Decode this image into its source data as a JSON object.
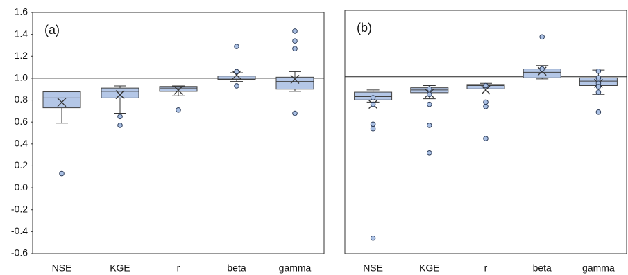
{
  "chart_data": [
    {
      "type": "box",
      "annotation": "(a)",
      "color": "#b4c7e7",
      "categories": [
        "NSE",
        "KGE",
        "r",
        "beta",
        "gamma"
      ],
      "ylim": [
        -0.6,
        1.6
      ],
      "yticks": [
        1.6,
        1.4,
        1.2,
        {
          "value": 1,
          "label": "1.0"
        },
        0.8,
        0.6,
        0.4,
        0.2,
        {
          "value": 0,
          "label": "0.0"
        },
        -0.2,
        -0.4,
        -0.6
      ],
      "hline": 1,
      "boxes": [
        {
          "low": 0.59,
          "q1": 0.73,
          "median": 0.82,
          "q3": 0.876,
          "high": 0.876,
          "mean": 0.78,
          "outliers": [
            0.13
          ]
        },
        {
          "low": 0.68,
          "q1": 0.82,
          "median": 0.88,
          "q3": 0.91,
          "high": 0.93,
          "mean": 0.85,
          "outliers": [
            0.65,
            0.57
          ]
        },
        {
          "low": 0.84,
          "q1": 0.88,
          "median": 0.91,
          "q3": 0.925,
          "high": 0.93,
          "mean": 0.89,
          "outliers": [
            0.71
          ]
        },
        {
          "low": 0.97,
          "q1": 0.99,
          "median": 1.0,
          "q3": 1.02,
          "high": 1.05,
          "mean": 1.03,
          "outliers": [
            1.29,
            1.06,
            0.93
          ]
        },
        {
          "low": 0.88,
          "q1": 0.9,
          "median": 0.97,
          "q3": 1.01,
          "high": 1.06,
          "mean": 0.99,
          "outliers": [
            1.43,
            1.34,
            1.27,
            0.68
          ]
        }
      ]
    },
    {
      "type": "box",
      "annotation": "(b)",
      "color": "#b4c7e7",
      "categories": [
        "NSE",
        "KGE",
        "r",
        "beta",
        "gamma"
      ],
      "ylim": [
        -0.6,
        1.6
      ],
      "hline": 1,
      "boxes": [
        {
          "low": 0.77,
          "q1": 0.79,
          "median": 0.82,
          "q3": 0.86,
          "high": 0.88,
          "mean": 0.75,
          "outliers": [
            0.81,
            0.75,
            0.57,
            0.53,
            -0.46
          ]
        },
        {
          "low": 0.8,
          "q1": 0.855,
          "median": 0.88,
          "q3": 0.9,
          "high": 0.92,
          "mean": 0.85,
          "outliers": [
            0.89,
            0.84,
            0.75,
            0.56,
            0.31
          ]
        },
        {
          "low": 0.87,
          "q1": 0.89,
          "median": 0.92,
          "q3": 0.93,
          "high": 0.94,
          "mean": 0.88,
          "outliers": [
            0.92,
            0.77,
            0.73,
            0.44
          ]
        },
        {
          "low": 0.98,
          "q1": 0.99,
          "median": 1.04,
          "q3": 1.07,
          "high": 1.1,
          "mean": 1.05,
          "outliers": [
            1.36,
            1.07
          ]
        },
        {
          "low": 0.84,
          "q1": 0.92,
          "median": 0.96,
          "q3": 0.99,
          "high": 1.06,
          "mean": 0.94,
          "outliers": [
            1.05,
            0.99,
            0.94,
            0.91,
            0.86,
            0.68
          ]
        }
      ]
    }
  ]
}
